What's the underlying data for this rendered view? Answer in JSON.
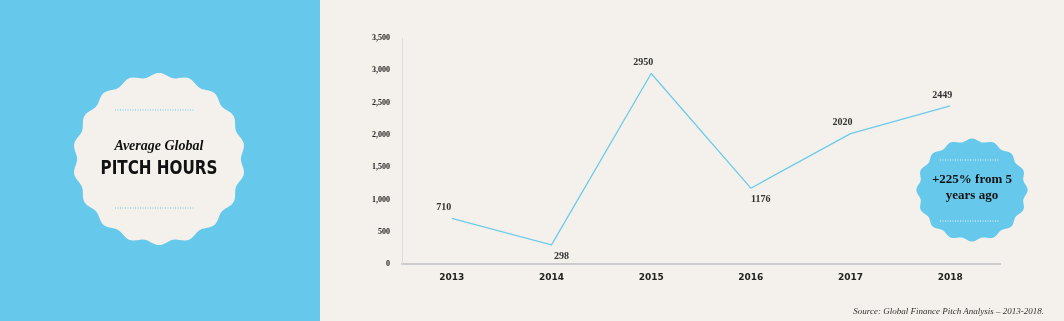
{
  "chart_data": {
    "type": "line",
    "title": "Average Global",
    "subtitle": "PITCH HOURS",
    "categories": [
      "2013",
      "2014",
      "2015",
      "2016",
      "2017",
      "2018"
    ],
    "series": [
      {
        "color": "#6ccbea",
        "values": [
          710,
          298,
          2950,
          1176,
          2020,
          2449
        ]
      }
    ],
    "ylim": [
      0,
      3500
    ],
    "yticks": [
      {
        "value": 0,
        "label": "0"
      },
      {
        "value": 500,
        "label": "500"
      },
      {
        "value": 1000,
        "label": "1,000"
      },
      {
        "value": 1500,
        "label": "1,500"
      },
      {
        "value": 2000,
        "label": "2,000"
      },
      {
        "value": 2500,
        "label": "2,500"
      },
      {
        "value": 3000,
        "label": "3,000"
      },
      {
        "value": 3500,
        "label": "3,500"
      }
    ],
    "grid": false,
    "legend": false,
    "marker": "none",
    "data_labels": true,
    "annotations": [
      "+225% from 5 years ago",
      "Source: Global Finance Pitch Analysis – 2013-2018."
    ]
  }
}
